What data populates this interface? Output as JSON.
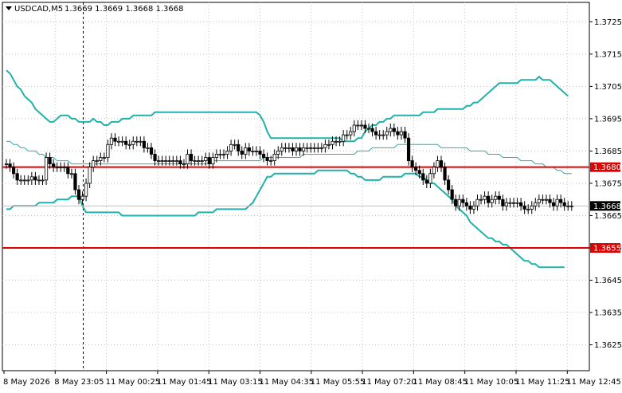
{
  "header": {
    "symbol_label": "USDCAD,M5",
    "ohlc_label": "1.3669 1.3669 1.3668 1.3668"
  },
  "colors": {
    "background": "#ffffff",
    "grid": "#c0c0c0",
    "axis": "#000000",
    "candle": "#000000",
    "bollinger": "#20b2aa",
    "level_line": "#e00000",
    "bid_line": "#c0c0c0",
    "price_tag_bg": "#000000",
    "level_tag_bg": "#e00000",
    "tag_text": "#ffffff"
  },
  "chart_data": {
    "type": "candlestick",
    "ylim": [
      1.3617,
      1.3731
    ],
    "y_ticks": [
      "1.3725",
      "1.3715",
      "1.3705",
      "1.3695",
      "1.3685",
      "1.3675",
      "1.3665",
      "1.3655",
      "1.3645",
      "1.3635",
      "1.3625"
    ],
    "x_ticks": [
      "8 May 2026",
      "8 May 23:05",
      "11 May 00:25",
      "11 May 01:45",
      "11 May 03:15",
      "11 May 04:35",
      "11 May 05:55",
      "11 May 07:20",
      "11 May 08:45",
      "11 May 10:05",
      "11 May 11:25",
      "11 May 12:45"
    ],
    "grid": true,
    "levels": [
      {
        "value": 1.368,
        "label": "1.3680"
      },
      {
        "value": 1.3655,
        "label": "1.3655"
      }
    ],
    "current_price": {
      "value": 1.3668,
      "label": "1.3668"
    },
    "period_separator_index": 21,
    "closes": [
      1.3681,
      1.368,
      1.3678,
      1.3676,
      1.3676,
      1.3676,
      1.3676,
      1.3677,
      1.3676,
      1.3676,
      1.3676,
      1.3683,
      1.3681,
      1.368,
      1.368,
      1.368,
      1.368,
      1.3678,
      1.3678,
      1.3673,
      1.367,
      1.3671,
      1.3675,
      1.368,
      1.3682,
      1.3682,
      1.3683,
      1.3683,
      1.3687,
      1.3689,
      1.3688,
      1.3688,
      1.3688,
      1.3687,
      1.3687,
      1.3688,
      1.3688,
      1.3688,
      1.3686,
      1.3686,
      1.3684,
      1.3682,
      1.3682,
      1.3682,
      1.3682,
      1.3682,
      1.3682,
      1.3682,
      1.3681,
      1.3681,
      1.3684,
      1.3682,
      1.3682,
      1.3682,
      1.3682,
      1.3683,
      1.3681,
      1.3683,
      1.3684,
      1.3684,
      1.3684,
      1.3685,
      1.3687,
      1.3687,
      1.3685,
      1.3684,
      1.3686,
      1.3685,
      1.3685,
      1.3685,
      1.3684,
      1.3683,
      1.3682,
      1.3682,
      1.3684,
      1.3685,
      1.3686,
      1.3686,
      1.3686,
      1.3685,
      1.3686,
      1.3685,
      1.3686,
      1.3686,
      1.3686,
      1.3686,
      1.3686,
      1.3686,
      1.3687,
      1.3687,
      1.3688,
      1.3688,
      1.3688,
      1.369,
      1.369,
      1.3691,
      1.3693,
      1.3693,
      1.3693,
      1.3692,
      1.3692,
      1.3691,
      1.369,
      1.369,
      1.369,
      1.3691,
      1.3692,
      1.3691,
      1.369,
      1.3691,
      1.3689,
      1.3682,
      1.368,
      1.3679,
      1.3678,
      1.3676,
      1.3675,
      1.3678,
      1.368,
      1.3682,
      1.368,
      1.3676,
      1.3673,
      1.367,
      1.3668,
      1.367,
      1.3669,
      1.3668,
      1.3667,
      1.3668,
      1.367,
      1.367,
      1.3671,
      1.3669,
      1.367,
      1.3671,
      1.367,
      1.3668,
      1.3669,
      1.3669,
      1.3669,
      1.3669,
      1.3668,
      1.3667,
      1.3667,
      1.3668,
      1.3669,
      1.367,
      1.367,
      1.367,
      1.3669,
      1.3668,
      1.367,
      1.3669,
      1.3668,
      1.3668,
      1.3668
    ],
    "upper_band": [
      1.371,
      1.3709,
      1.3707,
      1.3705,
      1.3704,
      1.3702,
      1.3701,
      1.37,
      1.3698,
      1.3697,
      1.3696,
      1.3695,
      1.3694,
      1.3694,
      1.3695,
      1.3696,
      1.3696,
      1.3696,
      1.3695,
      1.3695,
      1.3694,
      1.3694,
      1.3694,
      1.3694,
      1.3695,
      1.3694,
      1.3694,
      1.3693,
      1.3693,
      1.3694,
      1.3694,
      1.3694,
      1.3695,
      1.3695,
      1.3695,
      1.3696,
      1.3696,
      1.3696,
      1.3696,
      1.3696,
      1.3696,
      1.3697,
      1.3697,
      1.3697,
      1.3697,
      1.3697,
      1.3697,
      1.3697,
      1.3697,
      1.3697,
      1.3697,
      1.3697,
      1.3697,
      1.3697,
      1.3697,
      1.3697,
      1.3697,
      1.3697,
      1.3697,
      1.3697,
      1.3697,
      1.3697,
      1.3697,
      1.3697,
      1.3697,
      1.3697,
      1.3697,
      1.3697,
      1.3697,
      1.3697,
      1.3696,
      1.3694,
      1.3691,
      1.3689,
      1.3689,
      1.3689,
      1.3689,
      1.3689,
      1.3689,
      1.3689,
      1.3689,
      1.3689,
      1.3689,
      1.3689,
      1.3689,
      1.3689,
      1.3689,
      1.3689,
      1.3689,
      1.3689,
      1.3689,
      1.3689,
      1.3689,
      1.3688,
      1.3688,
      1.3688,
      1.3688,
      1.3689,
      1.3689,
      1.3691,
      1.3692,
      1.3693,
      1.3693,
      1.3694,
      1.3694,
      1.3695,
      1.3695,
      1.3696,
      1.3696,
      1.3696,
      1.3696,
      1.3696,
      1.3696,
      1.3696,
      1.3696,
      1.3697,
      1.3697,
      1.3697,
      1.3697,
      1.3698,
      1.3698,
      1.3698,
      1.3698,
      1.3698,
      1.3698,
      1.3698,
      1.3698,
      1.3699,
      1.3699,
      1.37,
      1.37,
      1.3701,
      1.3702,
      1.3703,
      1.3704,
      1.3705,
      1.3706,
      1.3706,
      1.3706,
      1.3706,
      1.3706,
      1.3706,
      1.3707,
      1.3707,
      1.3707,
      1.3707,
      1.3707,
      1.3708,
      1.3707,
      1.3707,
      1.3707,
      1.3706,
      1.3705,
      1.3704,
      1.3703,
      1.3702
    ],
    "middle_band": [
      1.3688,
      1.3688,
      1.3687,
      1.3687,
      1.3686,
      1.3686,
      1.3685,
      1.3685,
      1.3685,
      1.3684,
      1.3684,
      1.3683,
      1.3683,
      1.3683,
      1.3682,
      1.3682,
      1.3682,
      1.3682,
      1.3681,
      1.3681,
      1.3681,
      1.3681,
      1.3681,
      1.3681,
      1.3681,
      1.3681,
      1.3681,
      1.3681,
      1.3681,
      1.3681,
      1.3681,
      1.3681,
      1.3681,
      1.3681,
      1.3681,
      1.3681,
      1.3681,
      1.3681,
      1.3681,
      1.3681,
      1.3681,
      1.3681,
      1.3681,
      1.3681,
      1.3681,
      1.3681,
      1.3681,
      1.3681,
      1.3681,
      1.3681,
      1.3681,
      1.3681,
      1.3681,
      1.3681,
      1.3681,
      1.3681,
      1.3681,
      1.3682,
      1.3682,
      1.3682,
      1.3682,
      1.3682,
      1.3682,
      1.3682,
      1.3682,
      1.3682,
      1.3682,
      1.3682,
      1.3682,
      1.3682,
      1.3682,
      1.3683,
      1.3683,
      1.3683,
      1.3683,
      1.3683,
      1.3683,
      1.3683,
      1.3683,
      1.3683,
      1.3683,
      1.3683,
      1.3684,
      1.3684,
      1.3684,
      1.3684,
      1.3684,
      1.3684,
      1.3684,
      1.3684,
      1.3684,
      1.3684,
      1.3684,
      1.3684,
      1.3684,
      1.3684,
      1.3684,
      1.3685,
      1.3685,
      1.3685,
      1.3685,
      1.3686,
      1.3686,
      1.3686,
      1.3686,
      1.3686,
      1.3686,
      1.3686,
      1.3687,
      1.3687,
      1.3687,
      1.3687,
      1.3687,
      1.3687,
      1.3687,
      1.3687,
      1.3687,
      1.3687,
      1.3687,
      1.3687,
      1.3686,
      1.3686,
      1.3686,
      1.3686,
      1.3686,
      1.3686,
      1.3686,
      1.3686,
      1.3685,
      1.3685,
      1.3685,
      1.3685,
      1.3685,
      1.3684,
      1.3684,
      1.3684,
      1.3684,
      1.3683,
      1.3683,
      1.3683,
      1.3683,
      1.3683,
      1.3682,
      1.3682,
      1.3682,
      1.3682,
      1.3681,
      1.3681,
      1.3681,
      1.368,
      1.368,
      1.368,
      1.3679,
      1.3679,
      1.3678,
      1.3678,
      1.3678
    ],
    "lower_band": [
      1.3667,
      1.3667,
      1.3668,
      1.3668,
      1.3668,
      1.3668,
      1.3668,
      1.3668,
      1.3668,
      1.3669,
      1.3669,
      1.3669,
      1.3669,
      1.3669,
      1.367,
      1.367,
      1.367,
      1.367,
      1.3671,
      1.3671,
      1.3671,
      1.3668,
      1.3666,
      1.3666,
      1.3666,
      1.3666,
      1.3666,
      1.3666,
      1.3666,
      1.3666,
      1.3666,
      1.3666,
      1.3665,
      1.3665,
      1.3665,
      1.3665,
      1.3665,
      1.3665,
      1.3665,
      1.3665,
      1.3665,
      1.3665,
      1.3665,
      1.3665,
      1.3665,
      1.3665,
      1.3665,
      1.3665,
      1.3665,
      1.3665,
      1.3665,
      1.3665,
      1.3665,
      1.3666,
      1.3666,
      1.3666,
      1.3666,
      1.3666,
      1.3667,
      1.3667,
      1.3667,
      1.3667,
      1.3667,
      1.3667,
      1.3667,
      1.3667,
      1.3667,
      1.3668,
      1.3669,
      1.3671,
      1.3673,
      1.3675,
      1.3677,
      1.3677,
      1.3678,
      1.3678,
      1.3678,
      1.3678,
      1.3678,
      1.3678,
      1.3678,
      1.3678,
      1.3678,
      1.3678,
      1.3678,
      1.3678,
      1.3679,
      1.3679,
      1.3679,
      1.3679,
      1.3679,
      1.3679,
      1.3679,
      1.3679,
      1.3679,
      1.3678,
      1.3678,
      1.3677,
      1.3677,
      1.3676,
      1.3676,
      1.3676,
      1.3676,
      1.3676,
      1.3677,
      1.3677,
      1.3677,
      1.3677,
      1.3677,
      1.3677,
      1.3678,
      1.3678,
      1.3678,
      1.3678,
      1.3677,
      1.3677,
      1.3676,
      1.3675,
      1.3675,
      1.3674,
      1.3673,
      1.3672,
      1.3671,
      1.367,
      1.3668,
      1.3667,
      1.3666,
      1.3665,
      1.3663,
      1.3662,
      1.3661,
      1.366,
      1.3659,
      1.3658,
      1.3658,
      1.3657,
      1.3657,
      1.3656,
      1.3656,
      1.3655,
      1.3654,
      1.3653,
      1.3652,
      1.3651,
      1.3651,
      1.365,
      1.365,
      1.3649,
      1.3649,
      1.3649,
      1.3649,
      1.3649,
      1.3649,
      1.3649,
      1.3649
    ]
  }
}
